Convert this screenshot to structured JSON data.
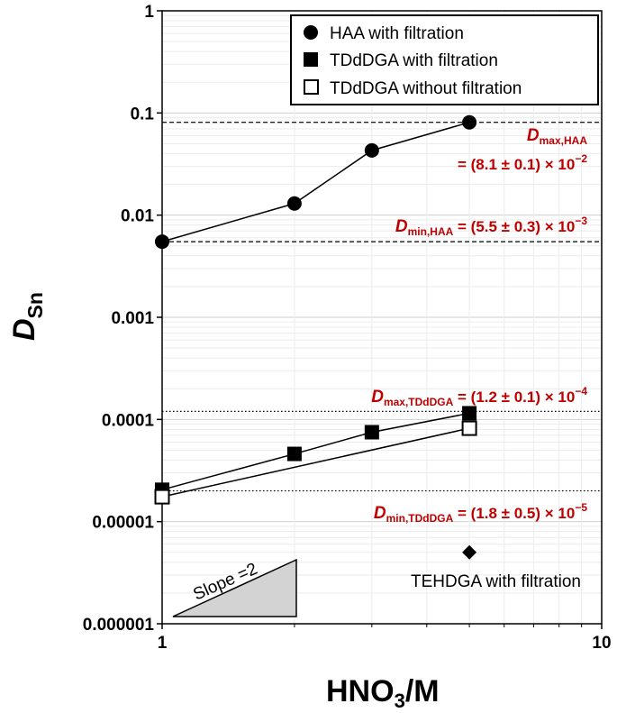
{
  "chart_data": {
    "type": "scatter",
    "x_scale": "log",
    "y_scale": "log",
    "xlim": [
      1,
      10
    ],
    "ylim": [
      1e-06,
      1
    ],
    "grid": true,
    "xlabel_main": "HNO",
    "xlabel_sub": "3",
    "xlabel_tail": "/M",
    "ylabel_main": "D",
    "ylabel_sub": "Sn",
    "x_tick_labels": [
      "1",
      "10"
    ],
    "y_tick_labels": [
      "0.000001",
      "0.00001",
      "0.0001",
      "0.001",
      "0.01",
      "0.1",
      "1"
    ],
    "legend_position": "top-right",
    "series": [
      {
        "name": "HAA with filtration",
        "marker": "filled-circle",
        "connected": true,
        "x": [
          1,
          2,
          3,
          5
        ],
        "y": [
          0.0055,
          0.013,
          0.043,
          0.081
        ]
      },
      {
        "name": "TDdDGA with filtration",
        "marker": "filled-square",
        "connected": true,
        "x": [
          1,
          2,
          3,
          5
        ],
        "y": [
          2.05e-05,
          4.6e-05,
          7.5e-05,
          0.000115
        ]
      },
      {
        "name": "TDdDGA without filtration",
        "marker": "open-square",
        "connected": true,
        "x": [
          1,
          5
        ],
        "y": [
          1.75e-05,
          8.2e-05
        ]
      },
      {
        "name": "TEHDGA with filtration",
        "marker": "filled-diamond",
        "connected": false,
        "x": [
          5
        ],
        "y": [
          5e-06
        ]
      }
    ],
    "reference_lines": [
      {
        "y": 0.081,
        "style": "dashed"
      },
      {
        "y": 0.0055,
        "style": "dashed"
      },
      {
        "y": 0.00012,
        "style": "dotted"
      },
      {
        "y": 2e-05,
        "style": "dotted"
      }
    ],
    "annotations": {
      "dmax_haa": {
        "main": "D",
        "sub": "max,HAA",
        "line2": "= (8.1 ± 0.1) × 10",
        "exp": "−2"
      },
      "dmin_haa": {
        "main": "D",
        "sub": "min,HAA",
        "text": " = (5.5 ± 0.3) × 10",
        "exp": "−3"
      },
      "dmax_tddga": {
        "main": "D",
        "sub": "max,TDdDGA",
        "text": " = (1.2 ± 0.1) × 10",
        "exp": "−4"
      },
      "dmin_tddga": {
        "main": "D",
        "sub": "min,TDdDGA",
        "text": " = (1.8 ± 0.5) × 10",
        "exp": "−5"
      },
      "slope_label": "Slope =2",
      "tehdga_label": "TEHDGA with filtration"
    },
    "colors": {
      "annotation": "#c00000",
      "marker": "#000000",
      "grid_major": "#cfcfcf",
      "grid_minor": "#ececec"
    }
  }
}
